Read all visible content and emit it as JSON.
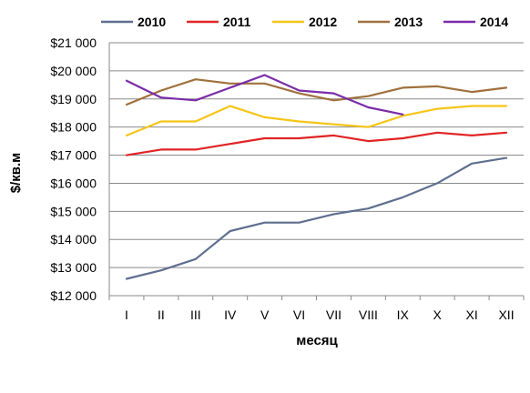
{
  "chart_data": {
    "type": "line",
    "title": "",
    "xlabel": "месяц",
    "ylabel": "$/кв.м",
    "categories": [
      "I",
      "II",
      "III",
      "IV",
      "V",
      "VI",
      "VII",
      "VIII",
      "IX",
      "X",
      "XI",
      "XII"
    ],
    "ylim": [
      12000,
      21000
    ],
    "y_tick_labels": [
      "$12 000",
      "$13 000",
      "$14 000",
      "$15 000",
      "$16 000",
      "$17 000",
      "$18 000",
      "$19 000",
      "$20 000",
      "$21 000"
    ],
    "grid": "horizontal",
    "legend_position": "top",
    "series": [
      {
        "name": "2010",
        "color": "#5E6F8F",
        "values": [
          12600,
          12900,
          13300,
          14300,
          14600,
          14600,
          14900,
          15100,
          15500,
          16000,
          16700,
          16900
        ]
      },
      {
        "name": "2011",
        "color": "#E02424",
        "values": [
          17000,
          17200,
          17200,
          17400,
          17600,
          17600,
          17700,
          17500,
          17600,
          17800,
          17700,
          17800
        ]
      },
      {
        "name": "2012",
        "color": "#F5C518",
        "values": [
          17700,
          18200,
          18200,
          18750,
          18350,
          18200,
          18100,
          18000,
          18400,
          18650,
          18750,
          18750
        ]
      },
      {
        "name": "2013",
        "color": "#A0703C",
        "values": [
          18800,
          19300,
          19700,
          19550,
          19550,
          19200,
          18950,
          19100,
          19400,
          19450,
          19250,
          19400
        ]
      },
      {
        "name": "2014",
        "color": "#7A2CA8",
        "values": [
          19650,
          19050,
          18950,
          19400,
          19850,
          19300,
          19200,
          18700,
          18450,
          null,
          null,
          null
        ]
      }
    ]
  }
}
